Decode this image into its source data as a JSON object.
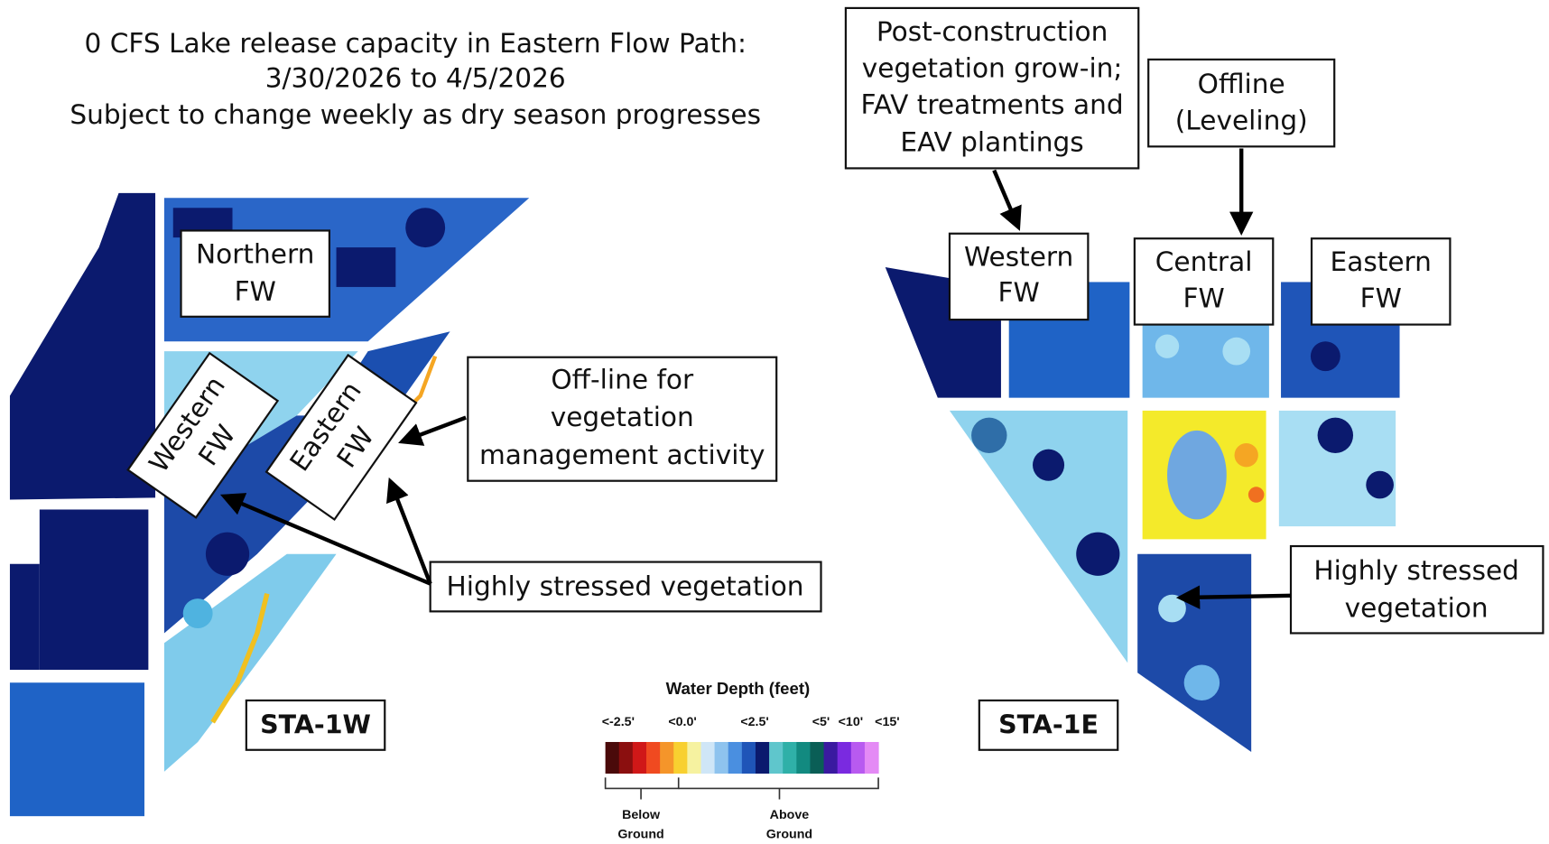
{
  "header": {
    "lines": [
      "0 CFS Lake release capacity in Eastern Flow Path:",
      "3/30/2026 to 4/5/2026",
      "Subject to change weekly as dry season progresses"
    ]
  },
  "sta_1w": {
    "label": "STA-1W",
    "northern_fw": [
      "Northern",
      "FW"
    ],
    "western_fw": [
      "Western",
      "FW"
    ],
    "eastern_fw": [
      "Eastern",
      "FW"
    ],
    "offline_note": [
      "Off-line for",
      "vegetation",
      "management activity"
    ],
    "stressed_note": "Highly stressed vegetation"
  },
  "sta_1e": {
    "label": "STA-1E",
    "construction_note": [
      "Post-construction",
      "vegetation grow-in;",
      "FAV treatments and",
      "EAV plantings"
    ],
    "offline_note": [
      "Offline",
      "(Leveling)"
    ],
    "western_fw": [
      "Western",
      "FW"
    ],
    "central_fw": [
      "Central",
      "FW"
    ],
    "eastern_fw": [
      "Eastern",
      "FW"
    ],
    "stressed_note": [
      "Highly stressed",
      "vegetation"
    ]
  },
  "legend": {
    "title": "Water Depth (feet)",
    "ticks": [
      "<-2.5'",
      "<0.0'",
      "<2.5'",
      "<5'",
      "<10'",
      "<15'"
    ],
    "below": [
      "Below",
      "Ground"
    ],
    "above": [
      "Above",
      "Ground"
    ]
  }
}
